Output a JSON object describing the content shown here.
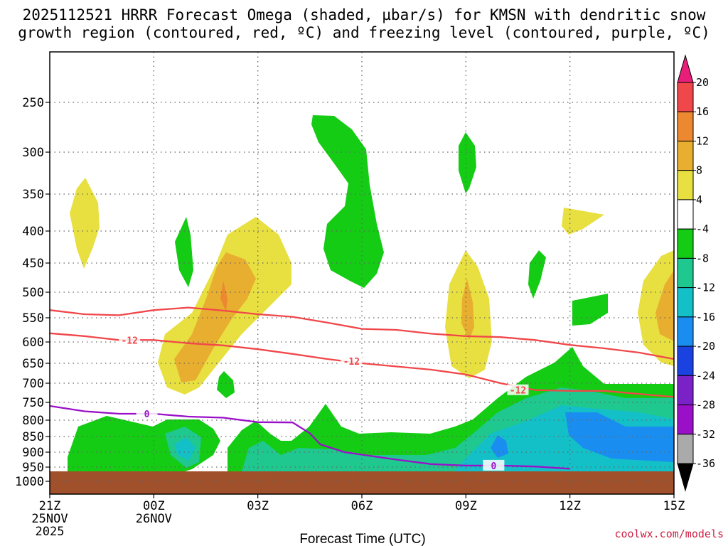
{
  "chart_data": {
    "type": "heatmap",
    "title_line1": "2025112521 HRRR Forecast Omega (shaded, µbar/s) for KMSN with dendritic snow",
    "title_line2": "growth region (contoured, red, ºC) and freezing level (contoured, purple, ºC)",
    "xlabel": "Forecast Time (UTC)",
    "credit": "coolwx.com/models",
    "x_ticks": [
      {
        "label": "21Z",
        "date": "25NOV",
        "year": "2025"
      },
      {
        "label": "00Z",
        "date": "26NOV",
        "year": ""
      },
      {
        "label": "03Z",
        "date": "",
        "year": ""
      },
      {
        "label": "06Z",
        "date": "",
        "year": ""
      },
      {
        "label": "09Z",
        "date": "",
        "year": ""
      },
      {
        "label": "12Z",
        "date": "",
        "year": ""
      },
      {
        "label": "15Z",
        "date": "",
        "year": ""
      }
    ],
    "xlim_hours": [
      0,
      18
    ],
    "y_ticks": [
      250,
      300,
      350,
      400,
      450,
      500,
      550,
      600,
      650,
      700,
      750,
      800,
      850,
      900,
      950,
      1000
    ],
    "ylim_hpa": [
      200,
      1050
    ],
    "colorbar": {
      "labels": [
        "20",
        "16",
        "12",
        "8",
        "4",
        "-4",
        "-8",
        "-12",
        "-16",
        "-20",
        "-24",
        "-28",
        "-32",
        "-36"
      ],
      "colors": [
        "#e81e7a",
        "#f0474a",
        "#ec8830",
        "#e8ae30",
        "#e8e040",
        "#ffffff",
        "#13cc13",
        "#1fc88e",
        "#14c0c8",
        "#1a8ef0",
        "#1a42e0",
        "#7a22c8",
        "#9a10c8",
        "#aaaaaa",
        "#000000"
      ]
    },
    "contour_labels": {
      "dgz": "-12",
      "freezing": "0"
    },
    "series": [
      {
        "name": "Dendritic growth zone upper (-12C isotherm top)",
        "color": "#f0474a",
        "points": [
          [
            0,
            535
          ],
          [
            1,
            543
          ],
          [
            2,
            545
          ],
          [
            3,
            535
          ],
          [
            4,
            530
          ],
          [
            5,
            536
          ],
          [
            6,
            543
          ],
          [
            7,
            548
          ],
          [
            8,
            560
          ],
          [
            9,
            573
          ],
          [
            10,
            575
          ],
          [
            11,
            583
          ],
          [
            12,
            588
          ],
          [
            13,
            590
          ],
          [
            14,
            596
          ],
          [
            15,
            607
          ],
          [
            16,
            615
          ],
          [
            17,
            625
          ],
          [
            18,
            640
          ]
        ]
      },
      {
        "name": "Dendritic growth zone lower (-12C isotherm bottom)",
        "color": "#f0474a",
        "points": [
          [
            0,
            582
          ],
          [
            1,
            588
          ],
          [
            2,
            596
          ],
          [
            3,
            596
          ],
          [
            4,
            603
          ],
          [
            5,
            608
          ],
          [
            6,
            617
          ],
          [
            7,
            628
          ],
          [
            8,
            640
          ],
          [
            9,
            650
          ],
          [
            10,
            658
          ],
          [
            11,
            666
          ],
          [
            12,
            678
          ],
          [
            13,
            700
          ],
          [
            14,
            718
          ],
          [
            15,
            720
          ],
          [
            16,
            720
          ],
          [
            17,
            728
          ],
          [
            18,
            736
          ]
        ]
      },
      {
        "name": "Freezing level (0C)",
        "color": "#9a10c8",
        "points": [
          [
            0,
            760
          ],
          [
            1,
            775
          ],
          [
            2,
            782
          ],
          [
            3,
            782
          ],
          [
            4,
            790
          ],
          [
            5,
            793
          ],
          [
            6,
            806
          ],
          [
            7,
            807
          ],
          [
            7.5,
            840
          ],
          [
            7.8,
            875
          ],
          [
            8.5,
            900
          ],
          [
            10,
            925
          ],
          [
            11,
            940
          ],
          [
            12,
            945
          ],
          [
            13,
            945
          ],
          [
            14,
            948
          ],
          [
            15,
            956
          ]
        ]
      }
    ]
  }
}
